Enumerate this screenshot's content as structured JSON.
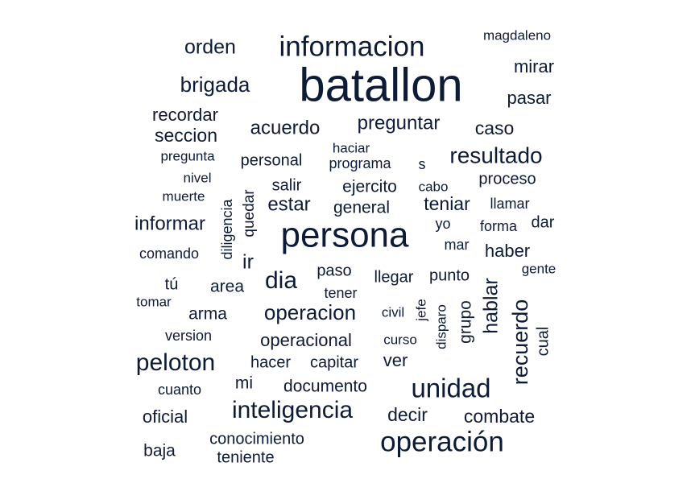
{
  "word_color": "#0d1b36",
  "background": "#ffffff",
  "words": [
    {
      "text": "batallon",
      "size": 8
    },
    {
      "text": "persona",
      "size": 6
    },
    {
      "text": "informacion",
      "size": 5
    },
    {
      "text": "operación",
      "size": 5
    },
    {
      "text": "unidad",
      "size": 5
    },
    {
      "text": "inteligencia",
      "size": 4.5
    },
    {
      "text": "peloton",
      "size": 4.5
    },
    {
      "text": "resultado",
      "size": 4.2
    },
    {
      "text": "dia",
      "size": 4.5
    },
    {
      "text": "recuerdo",
      "size": 4
    },
    {
      "text": "brigada",
      "size": 3.8
    },
    {
      "text": "operacion",
      "size": 3.8
    },
    {
      "text": "orden",
      "size": 3.5
    },
    {
      "text": "hablar",
      "size": 3.5
    },
    {
      "text": "acuerdo",
      "size": 3.3
    },
    {
      "text": "preguntar",
      "size": 3.3
    },
    {
      "text": "estar",
      "size": 3.3
    },
    {
      "text": "informar",
      "size": 3.3
    },
    {
      "text": "seccion",
      "size": 3.3
    },
    {
      "text": "ir",
      "size": 3.3
    },
    {
      "text": "combate",
      "size": 3.2
    },
    {
      "text": "decir",
      "size": 3.2
    },
    {
      "text": "teniar",
      "size": 3.2
    },
    {
      "text": "caso",
      "size": 3.1
    },
    {
      "text": "pasar",
      "size": 3.1
    },
    {
      "text": "mirar",
      "size": 3.1
    },
    {
      "text": "recordar",
      "size": 3.1
    },
    {
      "text": "haber",
      "size": 3.1
    },
    {
      "text": "oficial",
      "size": 3.1
    },
    {
      "text": "operacional",
      "size": 3.1
    },
    {
      "text": "documento",
      "size": 3
    },
    {
      "text": "grupo",
      "size": 3
    },
    {
      "text": "general",
      "size": 3
    },
    {
      "text": "ver",
      "size": 3
    },
    {
      "text": "ejercito",
      "size": 2.9
    },
    {
      "text": "conocimiento",
      "size": 2.9
    },
    {
      "text": "baja",
      "size": 3
    },
    {
      "text": "area",
      "size": 2.9
    },
    {
      "text": "arma",
      "size": 2.9
    },
    {
      "text": "personal",
      "size": 2.9
    },
    {
      "text": "salir",
      "size": 2.9
    },
    {
      "text": "teniente",
      "size": 2.9
    },
    {
      "text": "mi",
      "size": 3
    },
    {
      "text": "proceso",
      "size": 2.8
    },
    {
      "text": "capitar",
      "size": 2.8
    },
    {
      "text": "hacer",
      "size": 2.8
    },
    {
      "text": "llegar",
      "size": 2.8
    },
    {
      "text": "punto",
      "size": 2.8
    },
    {
      "text": "paso",
      "size": 2.8
    },
    {
      "text": "quedar",
      "size": 2.8
    },
    {
      "text": "tú",
      "size": 2.8
    },
    {
      "text": "cual",
      "size": 2.8
    },
    {
      "text": "dar",
      "size": 2.8
    },
    {
      "text": "comando",
      "size": 2.6
    },
    {
      "text": "cuanto",
      "size": 2.6
    },
    {
      "text": "version",
      "size": 2.6
    },
    {
      "text": "programa",
      "size": 2.6
    },
    {
      "text": "llamar",
      "size": 2.6
    },
    {
      "text": "yo",
      "size": 2.6
    },
    {
      "text": "mar",
      "size": 2.6
    },
    {
      "text": "forma",
      "size": 2.6
    },
    {
      "text": "tener",
      "size": 2.6
    },
    {
      "text": "diligencia",
      "size": 2.6
    },
    {
      "text": "muerte",
      "size": 2.5
    },
    {
      "text": "nivel",
      "size": 2.5
    },
    {
      "text": "pregunta",
      "size": 2.5
    },
    {
      "text": "haciar",
      "size": 2.5
    },
    {
      "text": "s",
      "size": 2.6
    },
    {
      "text": "magdaleno",
      "size": 2.5
    },
    {
      "text": "gente",
      "size": 2.5
    },
    {
      "text": "tomar",
      "size": 2.5
    },
    {
      "text": "civil",
      "size": 2.5
    },
    {
      "text": "curso",
      "size": 2.5
    },
    {
      "text": "cabo",
      "size": 2.5
    },
    {
      "text": "jefe",
      "size": 2.5
    },
    {
      "text": "disparo",
      "size": 2.5
    }
  ]
}
